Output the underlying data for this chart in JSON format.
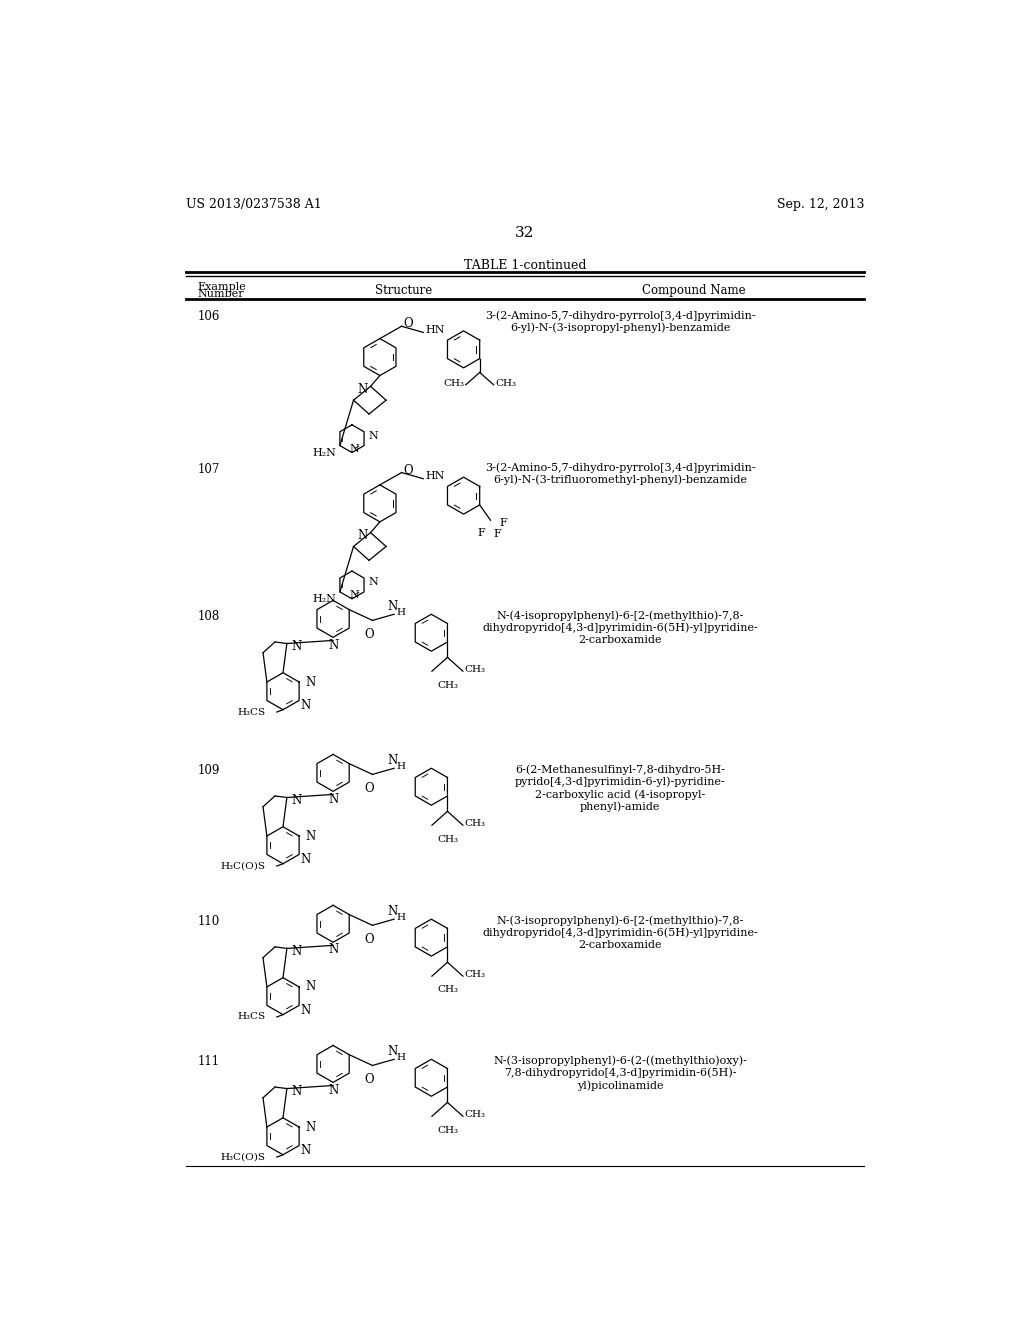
{
  "patent_number": "US 2013/0237538 A1",
  "patent_date": "Sep. 12, 2013",
  "page_number": "32",
  "table_title": "TABLE 1-continued",
  "background_color": "#ffffff",
  "rows": [
    {
      "number": "106",
      "compound_name": "3-(2-Amino-5,7-dihydro-pyrrolo[3,4-d]pyrimidin-\n6-yl)-N-(3-isopropyl-phenyl)-benzamide"
    },
    {
      "number": "107",
      "compound_name": "3-(2-Amino-5,7-dihydro-pyrrolo[3,4-d]pyrimidin-\n6-yl)-N-(3-trifluoromethyl-phenyl)-benzamide"
    },
    {
      "number": "108",
      "compound_name": "N-(4-isopropylphenyl)-6-[2-(methylthio)-7,8-\ndihydropyrido[4,3-d]pyrimidin-6(5H)-yl]pyridine-\n2-carboxamide"
    },
    {
      "number": "109",
      "compound_name": "6-(2-Methanesulfinyl-7,8-dihydro-5H-\npyrido[4,3-d]pyrimidin-6-yl)-pyridine-\n2-carboxylic acid (4-isopropyl-\nphenyl)-amide"
    },
    {
      "number": "110",
      "compound_name": "N-(3-isopropylphenyl)-6-[2-(methylthio)-7,8-\ndihydropyrido[4,3-d]pyrimidin-6(5H)-yl]pyridine-\n2-carboxamide"
    },
    {
      "number": "111",
      "compound_name": "N-(3-isopropylphenyl)-6-(2-((methylthio)oxy)-\n7,8-dihydropyrido[4,3-d]pyrimidin-6(5H)-\nyl)picolinamide"
    }
  ]
}
